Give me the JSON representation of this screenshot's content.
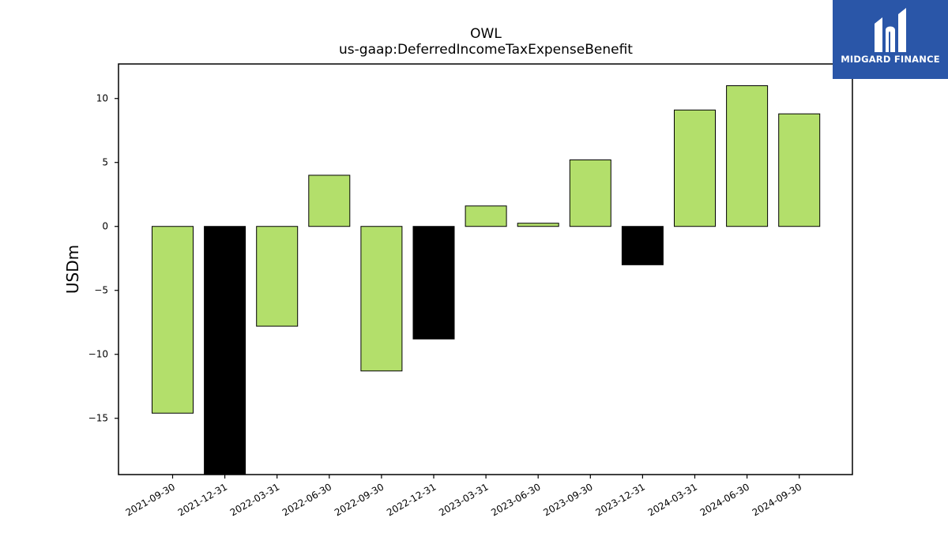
{
  "chart_data": {
    "type": "bar",
    "title": "OWL",
    "subtitle": "us-gaap:DeferredIncomeTaxExpenseBenefit",
    "ylabel": "USDm",
    "xlabel": "",
    "categories": [
      "2021-09-30",
      "2021-12-31",
      "2022-03-31",
      "2022-06-30",
      "2022-09-30",
      "2022-12-31",
      "2023-03-31",
      "2023-06-30",
      "2023-09-30",
      "2023-12-31",
      "2024-03-31",
      "2024-06-30",
      "2024-09-30"
    ],
    "values": [
      -14.6,
      -19.4,
      -7.8,
      4.0,
      -11.3,
      -8.8,
      1.6,
      0.25,
      5.2,
      -3.0,
      9.1,
      11.0,
      8.8
    ],
    "bar_colors": [
      "#b3df6b",
      "#000000",
      "#b3df6b",
      "#b3df6b",
      "#b3df6b",
      "#000000",
      "#b3df6b",
      "#b3df6b",
      "#b3df6b",
      "#000000",
      "#b3df6b",
      "#b3df6b",
      "#b3df6b"
    ],
    "ylim": [
      -19.4,
      12.7
    ],
    "yticks": [
      10,
      5,
      0,
      -5,
      -10,
      -15
    ],
    "ytick_labels": [
      "10",
      "5",
      "0",
      "−5",
      "−10",
      "−15"
    ],
    "grid": false,
    "legend": "none"
  },
  "logo": {
    "text": "MIDGARD FINANCE",
    "icon": "midgard-logo-icon",
    "color": "#2a56a8"
  }
}
